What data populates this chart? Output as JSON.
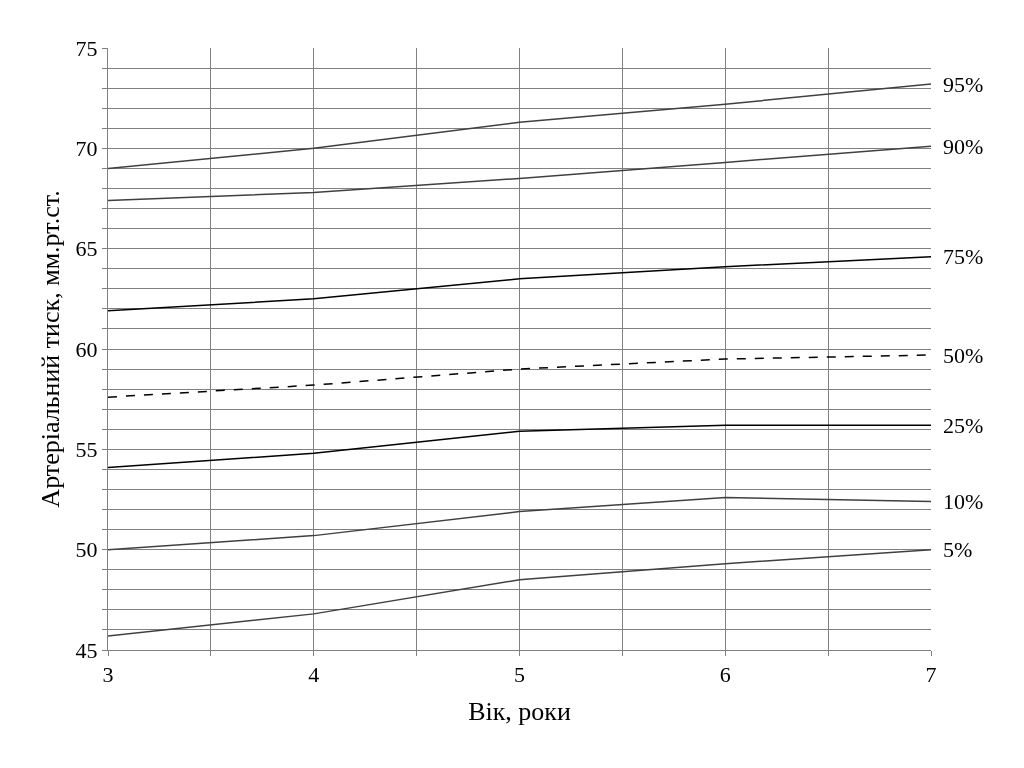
{
  "chart_data": {
    "type": "line",
    "xlabel": "Вік, роки",
    "ylabel": "Артеріальний тиск, мм.рт.ст.",
    "x": [
      3,
      4,
      5,
      6,
      7
    ],
    "series": [
      {
        "name": "95%",
        "color": "#404040",
        "values": [
          69.0,
          70.0,
          71.3,
          72.2,
          73.2
        ]
      },
      {
        "name": "90%",
        "color": "#404040",
        "values": [
          67.4,
          67.8,
          68.5,
          69.3,
          70.1
        ]
      },
      {
        "name": "75%",
        "color": "#000000",
        "values": [
          61.9,
          62.5,
          63.5,
          64.1,
          64.6
        ]
      },
      {
        "name": "50%",
        "color": "#000000",
        "line_style": "dashed",
        "values": [
          57.6,
          58.2,
          59.0,
          59.5,
          59.7
        ]
      },
      {
        "name": "25%",
        "color": "#000000",
        "values": [
          54.1,
          54.8,
          55.9,
          56.2,
          56.2
        ]
      },
      {
        "name": "10%",
        "color": "#404040",
        "values": [
          50.0,
          50.7,
          51.9,
          52.6,
          52.4
        ]
      },
      {
        "name": "5%",
        "color": "#404040",
        "values": [
          45.7,
          46.8,
          48.5,
          49.3,
          50.0
        ]
      }
    ],
    "xlim": [
      3,
      7
    ],
    "xticks": [
      3,
      {
        "value": 3.5,
        "label": null
      },
      4,
      {
        "value": 4.5,
        "label": null
      },
      5,
      {
        "value": 5.5,
        "label": null
      },
      6,
      {
        "value": 6.5,
        "label": null
      },
      7
    ],
    "ylim": [
      45,
      75
    ],
    "yticks": [
      45,
      {
        "value": 46,
        "label": null
      },
      {
        "value": 47,
        "label": null
      },
      {
        "value": 48,
        "label": null
      },
      {
        "value": 49,
        "label": null
      },
      50,
      {
        "value": 51,
        "label": null
      },
      {
        "value": 52,
        "label": null
      },
      {
        "value": 53,
        "label": null
      },
      {
        "value": 54,
        "label": null
      },
      55,
      {
        "value": 56,
        "label": null
      },
      {
        "value": 57,
        "label": null
      },
      {
        "value": 58,
        "label": null
      },
      {
        "value": 59,
        "label": null
      },
      60,
      {
        "value": 61,
        "label": null
      },
      {
        "value": 62,
        "label": null
      },
      {
        "value": 63,
        "label": null
      },
      {
        "value": 64,
        "label": null
      },
      65,
      {
        "value": 66,
        "label": null
      },
      {
        "value": 67,
        "label": null
      },
      {
        "value": 68,
        "label": null
      },
      {
        "value": 69,
        "label": null
      },
      70,
      {
        "value": 71,
        "label": null
      },
      {
        "value": 72,
        "label": null
      },
      {
        "value": 73,
        "label": null
      },
      {
        "value": 74,
        "label": null
      },
      75
    ],
    "grid": true,
    "legend": false,
    "marker": "none",
    "line_style": "solid"
  }
}
